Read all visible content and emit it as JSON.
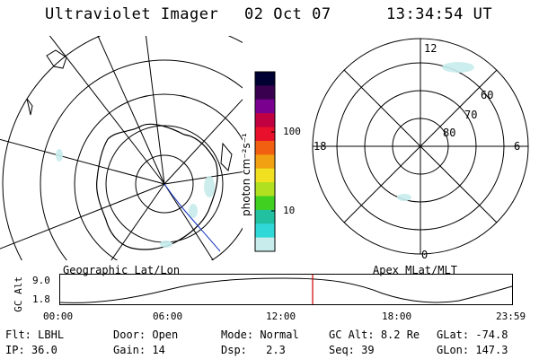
{
  "header": {
    "instrument": "Ultraviolet Imager",
    "date": "02 Oct 07",
    "time": "13:34:54 UT"
  },
  "color_bar": {
    "unit_label": "photon cm⁻²s⁻¹",
    "ticks": [
      "100",
      "10"
    ],
    "colors": [
      "#000033",
      "#3a0050",
      "#7a0090",
      "#c00040",
      "#e8102a",
      "#f06010",
      "#f0a010",
      "#f0e020",
      "#b0e020",
      "#40d020",
      "#20c0a0",
      "#30d8d8",
      "#c8ecec"
    ]
  },
  "geo_map": {
    "label": "Geographic Lat/Lon"
  },
  "mlt_map": {
    "label": "Apex MLat/MLT",
    "mlt_labels": {
      "top": "12",
      "left": "18",
      "right": "6",
      "bottom": "0"
    },
    "lat_labels": [
      "60",
      "70",
      "80"
    ]
  },
  "altitude_plot": {
    "ylabel": "GC Alt",
    "yticks": [
      "9.0",
      "1.8"
    ],
    "xticks": [
      "00:00",
      "06:00",
      "12:00",
      "18:00",
      "23:59"
    ],
    "current_time_marker": "13:34:54",
    "marker_color": "#d00000"
  },
  "footer": {
    "flt_label": "Flt:",
    "flt_value": "LBHL",
    "door_label": "Door:",
    "door_value": "Open",
    "mode_label": "Mode:",
    "mode_value": "Normal",
    "gcalt_label": "GC Alt:",
    "gcalt_value": "8.2 Re",
    "glat_label": "GLat:",
    "glat_value": "-74.8",
    "ip_label": "IP:",
    "ip_value": "36.0",
    "gain_label": "Gain:",
    "gain_value": "14",
    "dsp_label": "Dsp:",
    "dsp_value": "2.3",
    "seq_label": "Seq:",
    "seq_value": "39",
    "glon_label": "GLon:",
    "glon_value": "147.3"
  }
}
